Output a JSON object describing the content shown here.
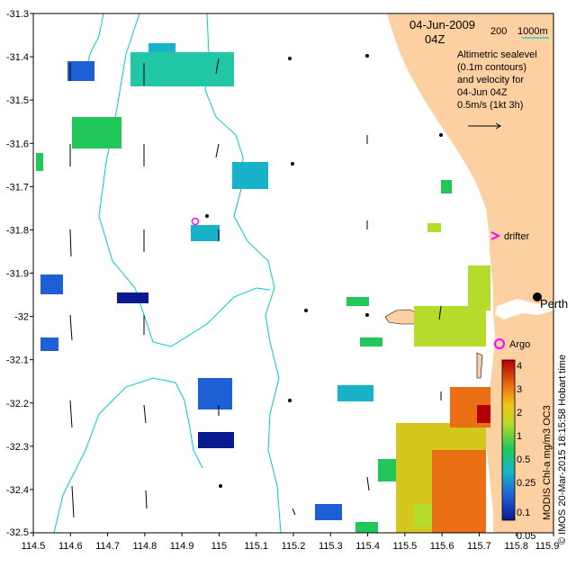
{
  "map": {
    "lon_ticks": [
      "114.5",
      "114.6",
      "114.7",
      "114.8",
      "114.9",
      "115",
      "115.1",
      "115.2",
      "115.3",
      "115.4",
      "115.5",
      "115.6",
      "115.7",
      "115.8",
      "115.9"
    ],
    "lat_ticks": [
      "-31.3",
      "-31.4",
      "-31.5",
      "-31.6",
      "-31.7",
      "-31.8",
      "-31.9",
      "-32",
      "-32.1",
      "-32.2",
      "-32.3",
      "-32.4",
      "-32.5"
    ],
    "lon_range": [
      114.5,
      115.9
    ],
    "lat_range": [
      -32.5,
      -31.3
    ]
  },
  "header": {
    "date": "04-Jun-2009",
    "hour": "04Z",
    "depth_200": "200",
    "depth_1000": "1000m"
  },
  "legend_text": {
    "line1": "Altimetric sealevel",
    "line2": "(0.1m contours)",
    "line3": "and velocity for",
    "line4": "04-Jun 04Z",
    "line5": "0.5m/s (1kt 3h)"
  },
  "places": {
    "perth": "Perth",
    "argo": "Argo",
    "drifter": "drifter"
  },
  "colorbar": {
    "title": "MODIS Chl-a mg/m3 OC3",
    "ticks": [
      "4",
      "3",
      "2",
      "1",
      "0.5",
      "0.25",
      "0.1",
      "0.05"
    ]
  },
  "credit": {
    "text": "© IMOS 20-Mar-2015 18:15:58 Hobart time"
  },
  "colors": {
    "land": "#fdd0a2",
    "isobath": "#00cccc",
    "chl_low": "#0b1a8f",
    "chl_high": "#b30000",
    "marker": "#ff00ff"
  }
}
